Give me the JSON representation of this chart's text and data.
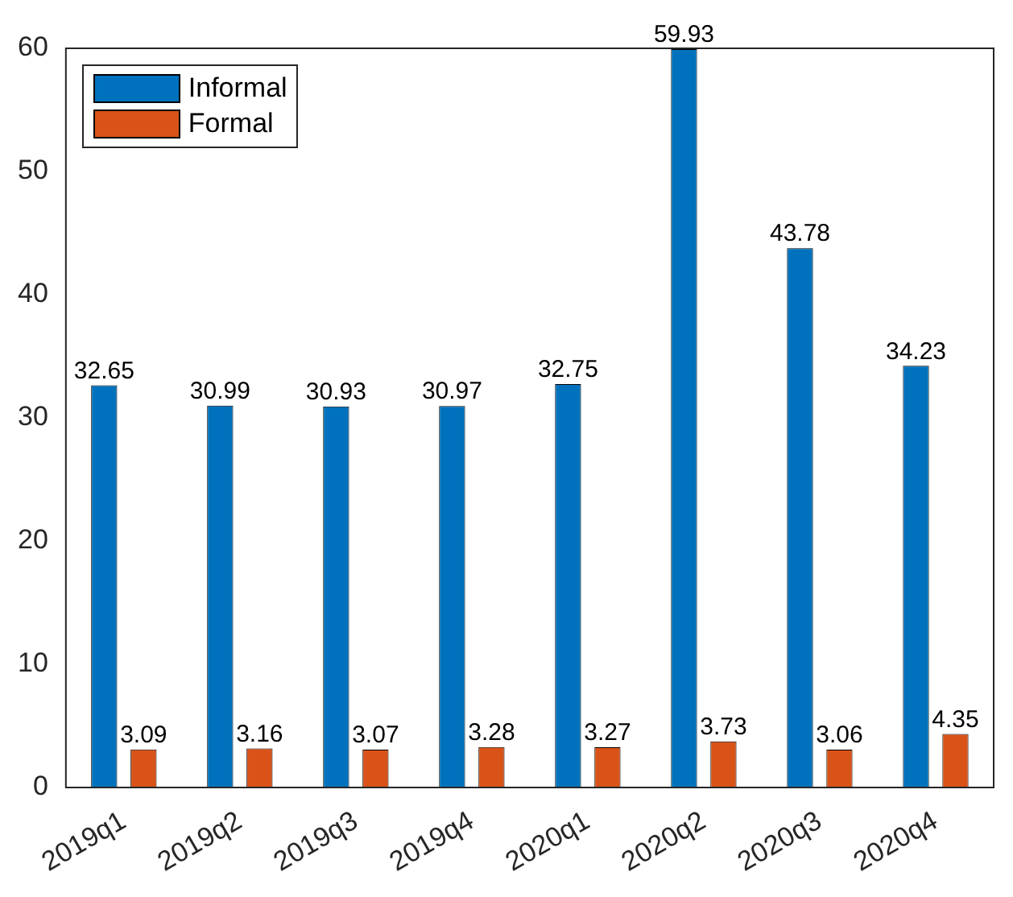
{
  "chart_data": {
    "type": "bar",
    "categories": [
      "2019q1",
      "2019q2",
      "2019q3",
      "2019q4",
      "2020q1",
      "2020q2",
      "2020q3",
      "2020q4"
    ],
    "series": [
      {
        "name": "Informal",
        "color": "#0072bd",
        "values": [
          32.65,
          30.99,
          30.93,
          30.97,
          32.75,
          59.93,
          43.78,
          34.23
        ]
      },
      {
        "name": "Formal",
        "color": "#d95319",
        "values": [
          3.09,
          3.16,
          3.07,
          3.28,
          3.27,
          3.73,
          3.06,
          4.35
        ]
      }
    ],
    "ylim": [
      0,
      60
    ],
    "yticks": [
      0,
      10,
      20,
      30,
      40,
      50,
      60
    ],
    "grid": false,
    "legend": "top left",
    "data_labels": true
  }
}
